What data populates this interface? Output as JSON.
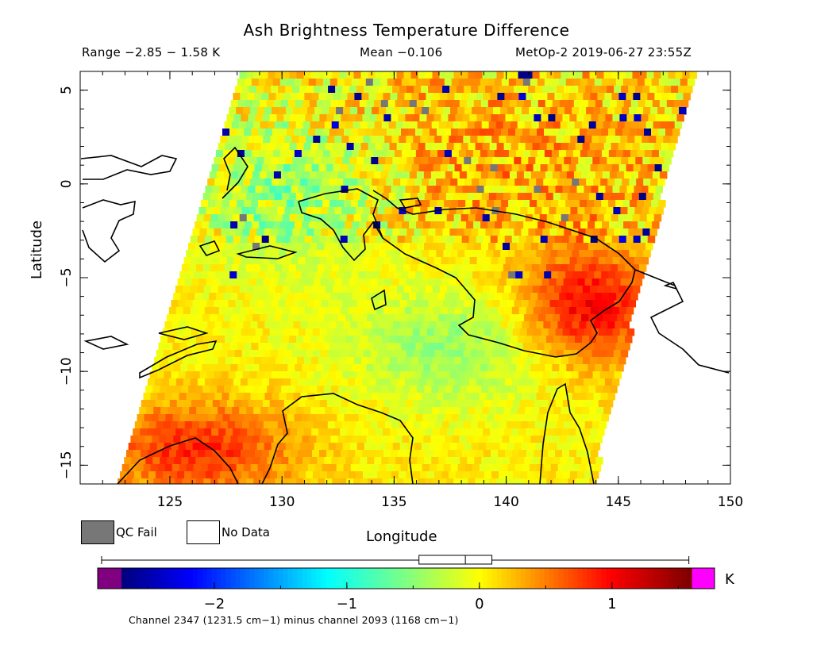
{
  "title": "Ash Brightness Temperature Difference",
  "header": {
    "range": "Range −2.85 − 1.58 K",
    "mean": "Mean −0.106",
    "satellite": "MetOp-2 2019-06-27 23:55Z"
  },
  "legend": {
    "qc_fail": "QC Fail",
    "no_data": "No Data",
    "qc_fail_color": "#777777",
    "no_data_color": "#ffffff"
  },
  "colorbar": {
    "units": "K",
    "ticks": [
      "−2",
      "−1",
      "0",
      "1"
    ],
    "tick_values": [
      -2,
      -1,
      0,
      1
    ],
    "min": -2.7,
    "max": 1.6,
    "under_color": "#800080",
    "over_color": "#ff00ff",
    "footnote": "Channel 2347 (1231.5 cm−1) minus channel 2093 (1168 cm−1)"
  },
  "chart_data": {
    "type": "heatmap",
    "title": "Ash Brightness Temperature Difference",
    "xlabel": "Longitude",
    "ylabel": "Latitude",
    "xlim": [
      121,
      150
    ],
    "ylim": [
      -16,
      6
    ],
    "xticks": [
      125,
      130,
      135,
      140,
      145,
      150
    ],
    "yticks": [
      5,
      0,
      -5,
      -10,
      -15
    ],
    "xtick_labels": [
      "125",
      "130",
      "135",
      "140",
      "145",
      "150"
    ],
    "ytick_labels": [
      "5",
      "0",
      "−5",
      "−10",
      "−15"
    ],
    "value_range": [
      -2.85,
      1.58
    ],
    "mean": -0.106,
    "units": "K",
    "swath_corners_lonlat": [
      [
        128.1,
        6
      ],
      [
        148.2,
        6
      ],
      [
        143.7,
        -16
      ],
      [
        122.6,
        -16
      ]
    ],
    "regions": [
      {
        "lon": [
          128,
          148
        ],
        "lat": [
          -3,
          6
        ],
        "value": 0.3
      },
      {
        "lon": [
          141,
          146
        ],
        "lat": [
          -9,
          -4
        ],
        "value": 1.0
      },
      {
        "lon": [
          122,
          130
        ],
        "lat": [
          -16,
          -12
        ],
        "value": 0.8
      },
      {
        "lon": [
          126,
          135
        ],
        "lat": [
          -4,
          4
        ],
        "value": -0.6
      },
      {
        "lon": [
          133,
          142
        ],
        "lat": [
          -11,
          -6
        ],
        "value": -0.5
      }
    ]
  }
}
